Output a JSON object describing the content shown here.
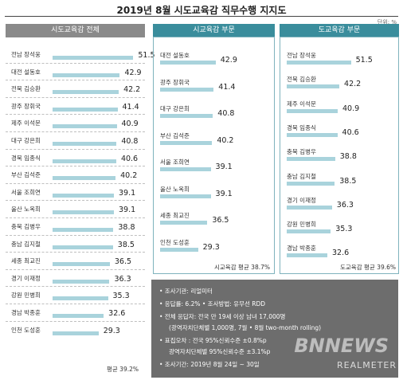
{
  "header": {
    "title": "2019년 8월 시도교육감 직무수행 지지도",
    "unit": "단위: %"
  },
  "panels": [
    {
      "title": "시도교육감 전체",
      "avg_label": "평균 39.2%",
      "rows": [
        {
          "name": "전남 장석웅",
          "value": 51.5
        },
        {
          "name": "대전 설동호",
          "value": 42.9
        },
        {
          "name": "전북 김승환",
          "value": 42.2
        },
        {
          "name": "광주 장휘국",
          "value": 41.4
        },
        {
          "name": "제주 이석문",
          "value": 40.9
        },
        {
          "name": "대구 강은희",
          "value": 40.8
        },
        {
          "name": "경북 임종식",
          "value": 40.6
        },
        {
          "name": "부산 김석준",
          "value": 40.2
        },
        {
          "name": "서울 조희연",
          "value": 39.1
        },
        {
          "name": "울산 노옥희",
          "value": 39.1
        },
        {
          "name": "충북 김병우",
          "value": 38.8
        },
        {
          "name": "충남 김지철",
          "value": 38.5
        },
        {
          "name": "세종 최교진",
          "value": 36.5
        },
        {
          "name": "경기 이재정",
          "value": 36.3
        },
        {
          "name": "강원 민병희",
          "value": 35.3
        },
        {
          "name": "경남 박종훈",
          "value": 32.6
        },
        {
          "name": "인천 도성훈",
          "value": 29.3
        }
      ]
    },
    {
      "title": "시교육감 부문",
      "avg_label": "시교육감 평균 38.7%",
      "rows": [
        {
          "name": "대전 설동호",
          "value": 42.9
        },
        {
          "name": "광주 장휘국",
          "value": 41.4
        },
        {
          "name": "대구 강은희",
          "value": 40.8
        },
        {
          "name": "부산 김석준",
          "value": 40.2
        },
        {
          "name": "서울 조희연",
          "value": 39.1
        },
        {
          "name": "울산 노옥희",
          "value": 39.1
        },
        {
          "name": "세종 최교진",
          "value": 36.5
        },
        {
          "name": "인천 도성훈",
          "value": 29.3
        }
      ]
    },
    {
      "title": "도교육감 부문",
      "avg_label": "도교육감 평균 39.6%",
      "rows": [
        {
          "name": "전남 장석웅",
          "value": 51.5
        },
        {
          "name": "전북 김승환",
          "value": 42.2
        },
        {
          "name": "제주 이석문",
          "value": 40.9
        },
        {
          "name": "경북 임종식",
          "value": 40.6
        },
        {
          "name": "충북 김병우",
          "value": 38.8
        },
        {
          "name": "충남 김지철",
          "value": 38.5
        },
        {
          "name": "경기 이재정",
          "value": 36.3
        },
        {
          "name": "강원 민병희",
          "value": 35.3
        },
        {
          "name": "경남 박종훈",
          "value": 32.6
        }
      ]
    }
  ],
  "chart_data": [
    {
      "type": "bar",
      "title": "시도교육감 전체",
      "categories": [
        "전남 장석웅",
        "대전 설동호",
        "전북 김승환",
        "광주 장휘국",
        "제주 이석문",
        "대구 강은희",
        "경북 임종식",
        "부산 김석준",
        "서울 조희연",
        "울산 노옥희",
        "충북 김병우",
        "충남 김지철",
        "세종 최교진",
        "경기 이재정",
        "강원 민병희",
        "경남 박종훈",
        "인천 도성훈"
      ],
      "values": [
        51.5,
        42.9,
        42.2,
        41.4,
        40.9,
        40.8,
        40.6,
        40.2,
        39.1,
        39.1,
        38.8,
        38.5,
        36.5,
        36.3,
        35.3,
        32.6,
        29.3
      ],
      "xlabel": "",
      "ylabel": "",
      "ylim": [
        0,
        60
      ]
    },
    {
      "type": "bar",
      "title": "시교육감 부문",
      "categories": [
        "대전 설동호",
        "광주 장휘국",
        "대구 강은희",
        "부산 김석준",
        "서울 조희연",
        "울산 노옥희",
        "세종 최교진",
        "인천 도성훈"
      ],
      "values": [
        42.9,
        41.4,
        40.8,
        40.2,
        39.1,
        39.1,
        36.5,
        29.3
      ],
      "xlabel": "",
      "ylabel": "",
      "ylim": [
        0,
        60
      ]
    },
    {
      "type": "bar",
      "title": "도교육감 부문",
      "categories": [
        "전남 장석웅",
        "전북 김승환",
        "제주 이석문",
        "경북 임종식",
        "충북 김병우",
        "충남 김지철",
        "경기 이재정",
        "강원 민병희",
        "경남 박종훈"
      ],
      "values": [
        51.5,
        42.2,
        40.9,
        40.6,
        38.8,
        38.5,
        36.3,
        35.3,
        32.6
      ],
      "xlabel": "",
      "ylabel": "",
      "ylim": [
        0,
        60
      ]
    }
  ],
  "info": {
    "lines": [
      "• 조사기관: 리얼미터",
      "• 응답률: 6.2% • 조사방법: 유무선 RDD",
      "• 전체 응답자: 전국 만 19세 이상 남녀 17,000명",
      "(광역자치단체별 1,000명, 7월 • 8월 two-month rolling)",
      "• 표집오차 : 전국 95%신뢰수준 ±0.8%p",
      "광역자치단체별 95%신뢰수준 ±3.1%p",
      "• 조사기간: 2019년 8월 24일 ~ 30일"
    ],
    "watermark": "BNNEWS",
    "brand": "REALMETER"
  },
  "colors": {
    "panel1_header": "#8a8a8a",
    "panel2_header": "#3a8d9c",
    "panel3_header": "#3a8d9c",
    "bar": "#a9d3dc",
    "info_bg": "#6d6d6d"
  }
}
